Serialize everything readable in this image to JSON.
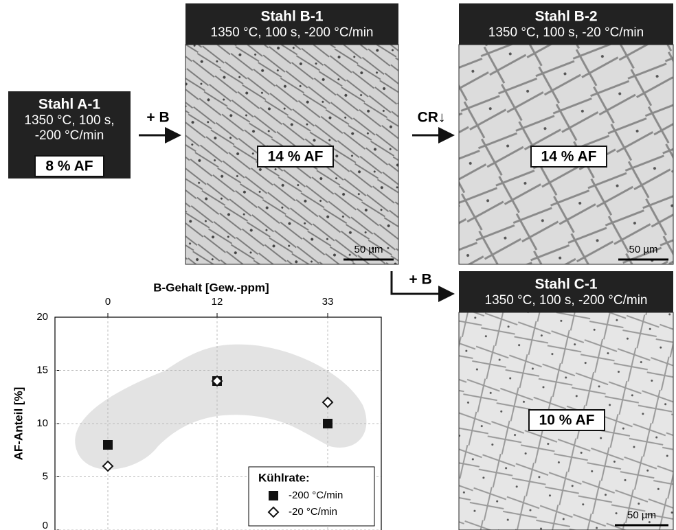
{
  "panels": [
    {
      "title": "Stahl A-1",
      "lines": [
        "1350 °C, 100 s,",
        "-200 °C/min"
      ],
      "label": "8 % AF"
    },
    {
      "title": "Stahl B-1",
      "lines": [
        "1350 °C, 100 s, -200 °C/min"
      ],
      "label": "14 % AF",
      "scale": "50 µm"
    },
    {
      "title": "Stahl B-2",
      "lines": [
        "1350 °C, 100 s, -20 °C/min"
      ],
      "label": "14 % AF",
      "scale": "50 µm"
    },
    {
      "title": "Stahl C-1",
      "lines": [
        "1350 °C, 100 s, -200 °C/min"
      ],
      "label": "10 % AF",
      "scale": "50 µm"
    }
  ],
  "arrows": [
    "+ B",
    "CR↓",
    "+ B"
  ],
  "chart_data": {
    "type": "scatter",
    "x_label": "B-Gehalt [Gew.-ppm]",
    "y_label": "AF-Anteil [%]",
    "categories": [
      "0",
      "12",
      "33"
    ],
    "series": [
      {
        "name": "-200 °C/min",
        "color": "#111111",
        "marker": "square",
        "values": [
          8,
          14,
          10
        ]
      },
      {
        "name": "-20 °C/min",
        "color": "#111111",
        "marker": "diamond",
        "values": [
          6,
          14,
          12
        ]
      }
    ],
    "legend_title": "Kühlrate:",
    "legend": "lower right",
    "ylim": [
      0,
      20
    ],
    "yticks": [
      0,
      5,
      10,
      15,
      20
    ],
    "grid": true
  }
}
